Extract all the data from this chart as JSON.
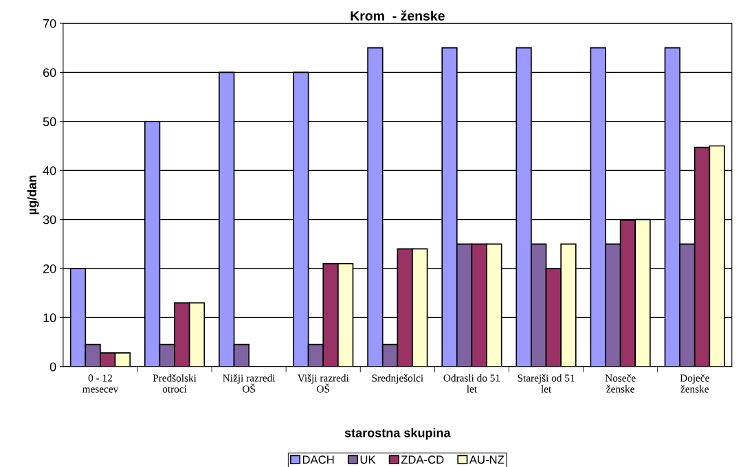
{
  "chart_data": {
    "type": "bar",
    "title": "Krom  - ženske",
    "xlabel": "starostna skupina",
    "ylabel": "µg/dan",
    "categories": [
      "0 - 12\nmesecev",
      "Predšolski\notroci",
      "Nižji razredi\nOŠ",
      "Višji razredi\nOŠ",
      "Srednješolci",
      "Odrasli do 51\nlet",
      "Starejši od 51\nlet",
      "Noseče\nženske",
      "Doječe\nženske"
    ],
    "series": [
      {
        "name": "DACH",
        "color": "#9999ff",
        "values": [
          20,
          50,
          60,
          60,
          65,
          65,
          65,
          65,
          65
        ]
      },
      {
        "name": "UK",
        "color": "#8064a2",
        "values": [
          4.5,
          4.5,
          4.5,
          4.5,
          4.5,
          25,
          25,
          25,
          25
        ]
      },
      {
        "name": "ZDA-CD",
        "color": "#993366",
        "values": [
          2.8,
          13,
          null,
          21,
          24,
          25,
          20,
          29.8,
          44.7
        ]
      },
      {
        "name": "AU-NZ",
        "color": "#ffffcc",
        "values": [
          2.8,
          13,
          null,
          21,
          24,
          25,
          25,
          30,
          45
        ]
      }
    ],
    "ylim": [
      0,
      70
    ],
    "yticks": [
      0,
      10,
      20,
      30,
      40,
      50,
      60,
      70
    ],
    "grid": "y",
    "legend": "bottom"
  }
}
